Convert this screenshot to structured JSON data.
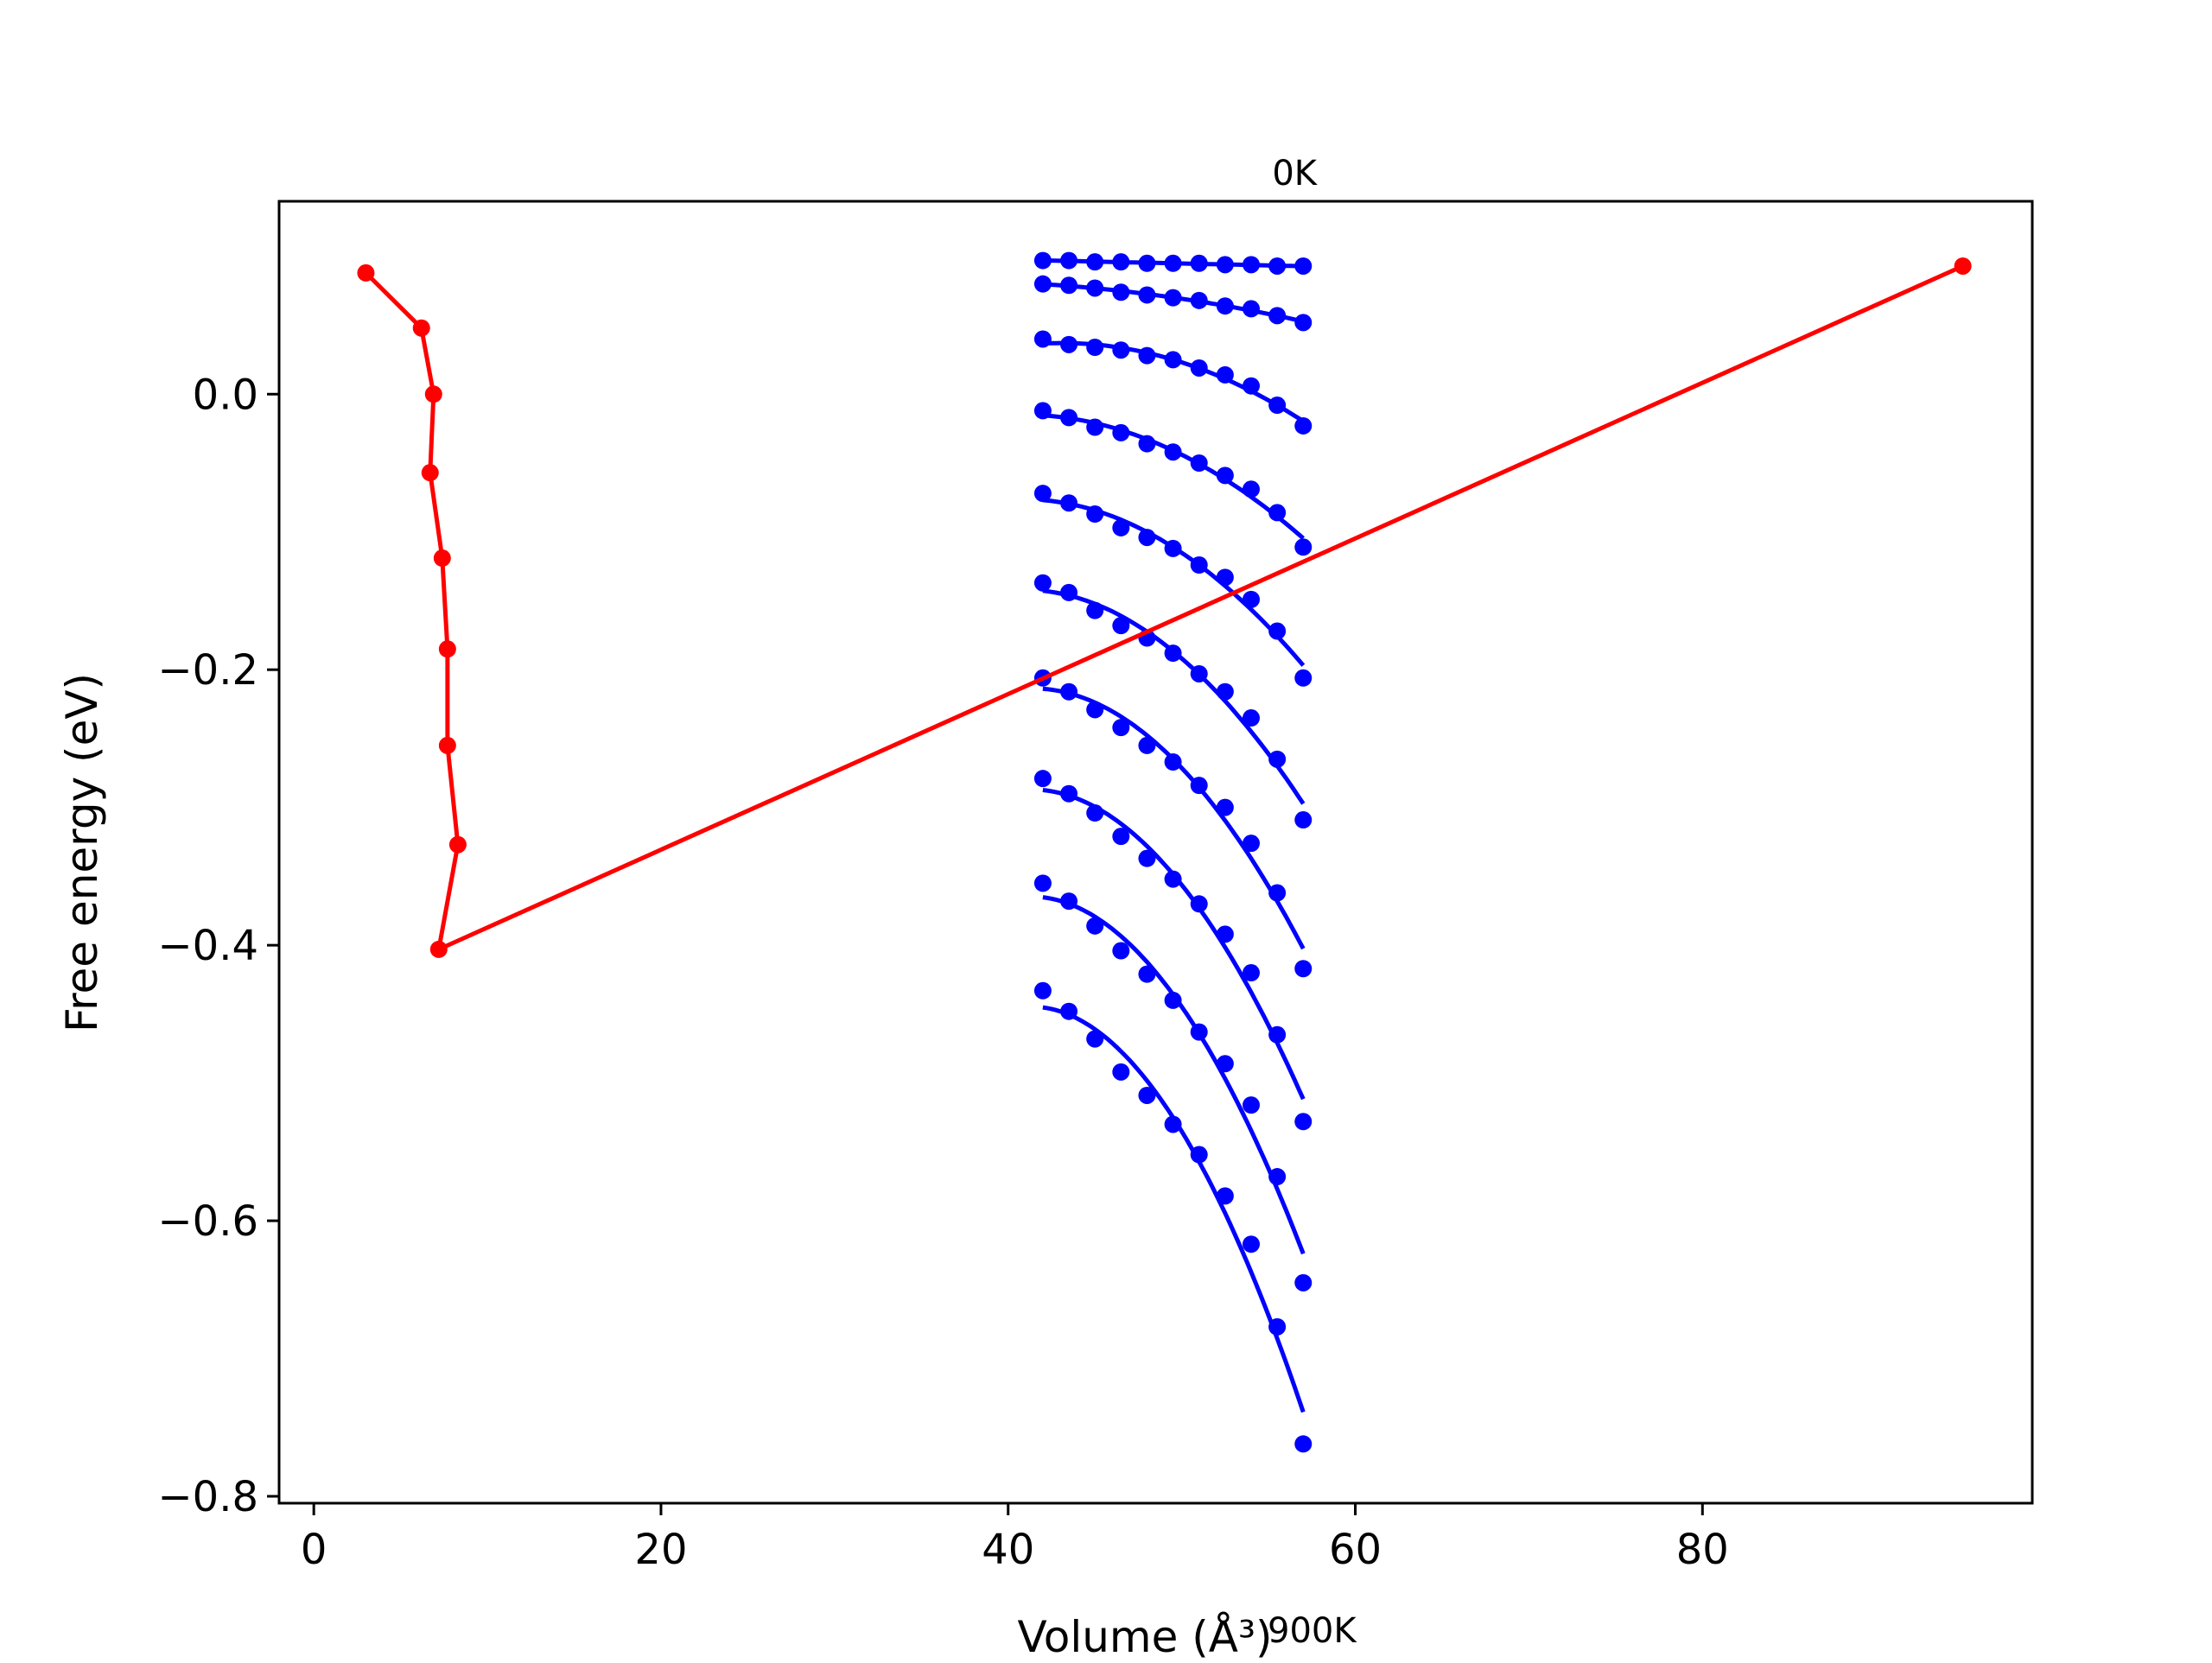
{
  "chart_data": {
    "type": "line",
    "title": "",
    "xlabel": "Volume (Å³)",
    "ylabel": "Free energy (eV)",
    "xlim": [
      -2,
      99
    ],
    "ylim": [
      -0.805,
      0.14
    ],
    "xticks": [
      0,
      20,
      40,
      60,
      80
    ],
    "yticks": [
      0.0,
      -0.2,
      -0.4,
      -0.6,
      -0.8
    ],
    "xtick_labels": [
      "0",
      "20",
      "40",
      "60",
      "80"
    ],
    "ytick_labels": [
      "0.0",
      "−0.2",
      "−0.4",
      "−0.6",
      "−0.8"
    ],
    "grid": false,
    "annotations": [
      {
        "text": "0K",
        "x": 56.5,
        "y": 0.152
      },
      {
        "text": "900K",
        "x": 57.5,
        "y": -0.906
      }
    ],
    "colors": {
      "fit": "#0000ff",
      "points": "#0000ff",
      "minimum_path": "#ff0000"
    },
    "volumes": [
      42.0,
      43.5,
      45.0,
      46.5,
      48.0,
      49.5,
      51.0,
      52.5,
      54.0,
      55.5,
      57.0
    ],
    "series": [
      {
        "values": [
          0.097,
          0.097,
          0.096,
          0.096,
          0.095,
          0.095,
          0.095,
          0.094,
          0.094,
          0.093,
          0.093
        ]
      },
      {
        "values": [
          0.08,
          0.079,
          0.077,
          0.074,
          0.072,
          0.07,
          0.068,
          0.064,
          0.062,
          0.057,
          0.052
        ]
      },
      {
        "values": [
          0.04,
          0.036,
          0.034,
          0.032,
          0.028,
          0.025,
          0.019,
          0.014,
          0.006,
          -0.008,
          -0.023
        ]
      },
      {
        "values": [
          -0.012,
          -0.017,
          -0.024,
          -0.028,
          -0.036,
          -0.042,
          -0.05,
          -0.059,
          -0.069,
          -0.086,
          -0.111
        ]
      },
      {
        "values": [
          -0.072,
          -0.079,
          -0.087,
          -0.097,
          -0.104,
          -0.112,
          -0.124,
          -0.133,
          -0.149,
          -0.172,
          -0.206
        ]
      },
      {
        "values": [
          -0.137,
          -0.144,
          -0.157,
          -0.168,
          -0.177,
          -0.188,
          -0.203,
          -0.216,
          -0.235,
          -0.265,
          -0.309
        ]
      },
      {
        "values": [
          -0.206,
          -0.216,
          -0.229,
          -0.242,
          -0.255,
          -0.267,
          -0.284,
          -0.3,
          -0.326,
          -0.362,
          -0.417
        ]
      },
      {
        "values": [
          -0.279,
          -0.29,
          -0.304,
          -0.321,
          -0.337,
          -0.352,
          -0.37,
          -0.392,
          -0.42,
          -0.465,
          -0.528
        ]
      },
      {
        "values": [
          -0.355,
          -0.368,
          -0.386,
          -0.404,
          -0.421,
          -0.44,
          -0.463,
          -0.486,
          -0.516,
          -0.568,
          -0.645
        ]
      },
      {
        "values": [
          -0.433,
          -0.448,
          -0.468,
          -0.492,
          -0.509,
          -0.53,
          -0.552,
          -0.582,
          -0.617,
          -0.677,
          -0.762
        ]
      }
    ],
    "minimum_path": {
      "x": [
        3.0,
        6.2,
        6.9,
        6.7,
        7.4,
        7.7,
        7.7,
        8.3,
        7.2,
        95.0
      ],
      "y": [
        0.088,
        0.048,
        0.0,
        -0.057,
        -0.119,
        -0.185,
        -0.255,
        -0.327,
        -0.403,
        0.093
      ]
    }
  }
}
